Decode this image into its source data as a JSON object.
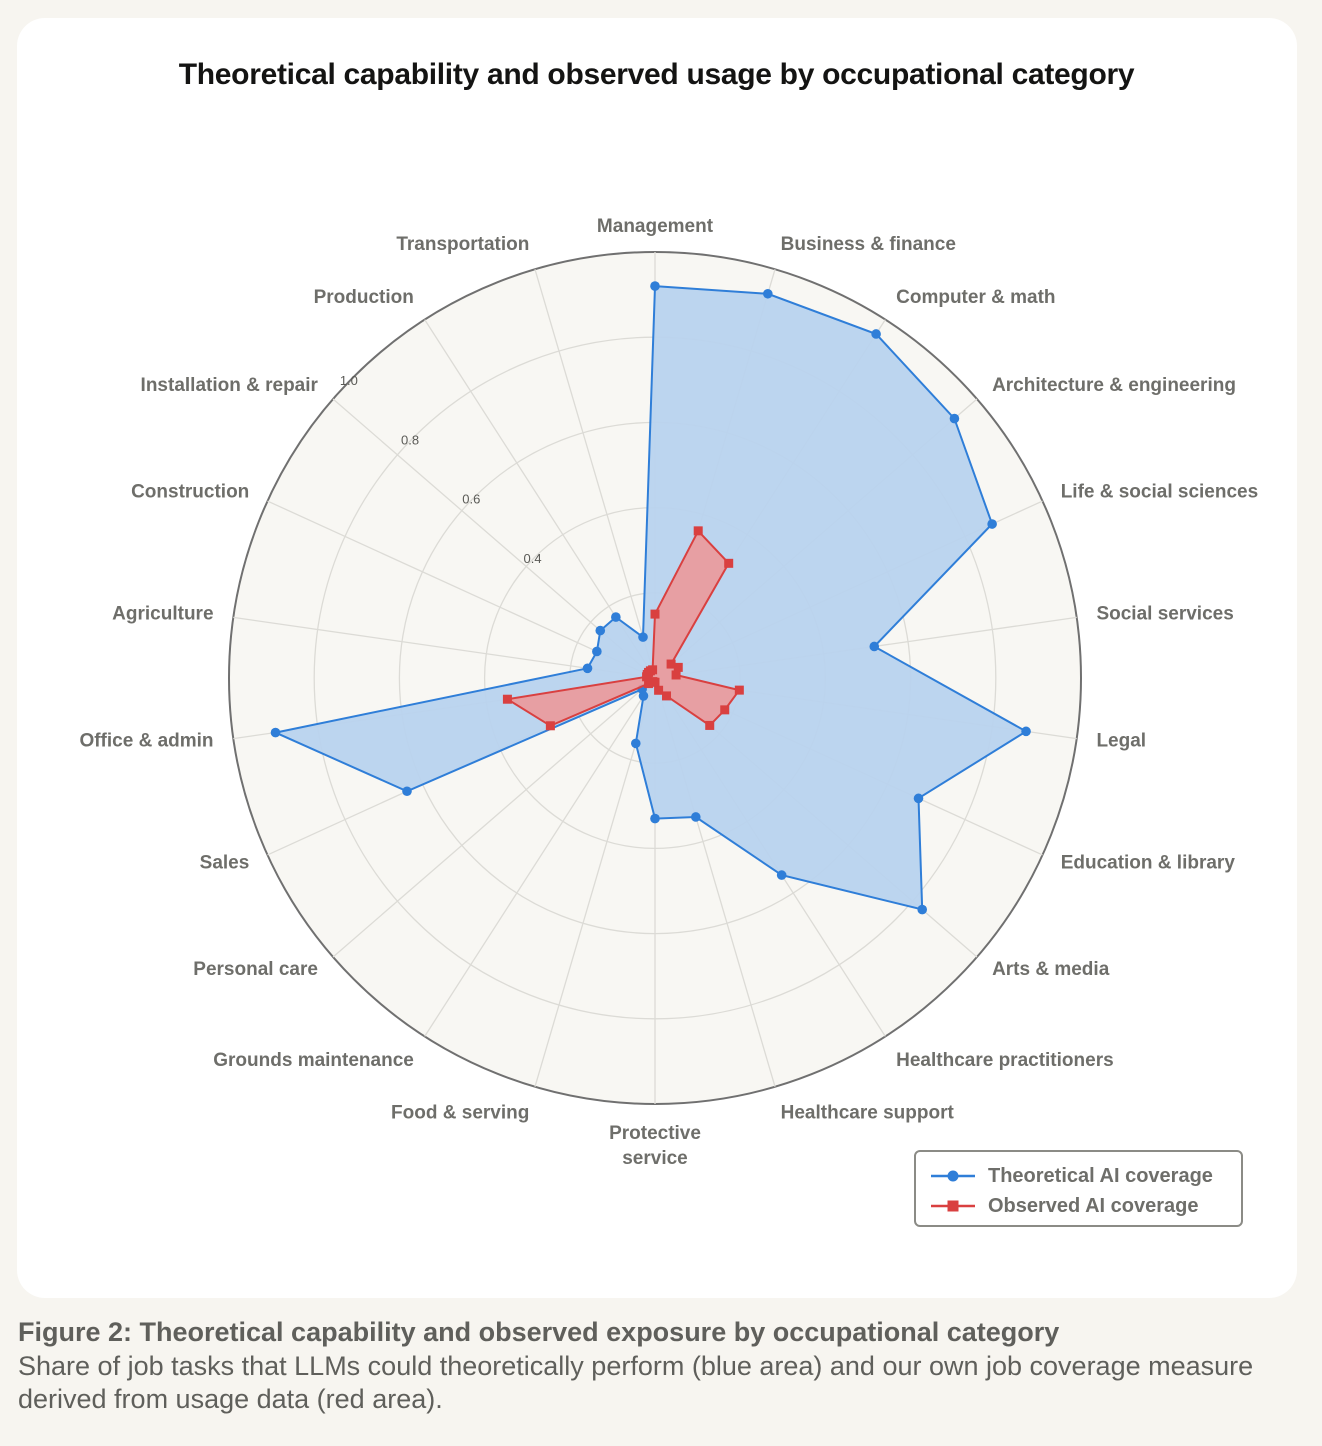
{
  "chart_data": {
    "type": "radar",
    "title": "Theoretical capability and observed usage by occupational category",
    "categories": [
      "Management",
      "Business & finance",
      "Computer & math",
      "Architecture & engineering",
      "Life & social sciences",
      "Social services",
      "Legal",
      "Education & library",
      "Arts & media",
      "Healthcare practitioners",
      "Healthcare support",
      "Protective service",
      "Food & serving",
      "Grounds maintenance",
      "Personal care",
      "Sales",
      "Office & admin",
      "Agriculture",
      "Construction",
      "Installation & repair",
      "Production",
      "Transportation"
    ],
    "radial_ticks": [
      "0.4",
      "0.6",
      "0.8",
      "1.0"
    ],
    "rlim": [
      0,
      1
    ],
    "series": [
      {
        "name": "Theoretical AI coverage",
        "color": "#2f7ed8",
        "fill": "#b8d3ee",
        "values": [
          0.92,
          0.94,
          0.96,
          0.93,
          0.87,
          0.52,
          0.88,
          0.68,
          0.83,
          0.55,
          0.34,
          0.33,
          0.16,
          0.05,
          0.04,
          0.64,
          0.9,
          0.16,
          0.15,
          0.17,
          0.17,
          0.1
        ]
      },
      {
        "name": "Observed AI coverage",
        "color": "#d94040",
        "fill": "#ee9595",
        "values": [
          0.15,
          0.36,
          0.32,
          0.05,
          0.06,
          0.05,
          0.2,
          0.18,
          0.17,
          0.05,
          0.03,
          0.01,
          0.01,
          0.01,
          0.02,
          0.27,
          0.35,
          0.02,
          0.02,
          0.02,
          0.02,
          0.02
        ]
      }
    ],
    "legend": [
      "Theoretical AI coverage",
      "Observed AI coverage"
    ],
    "legend_position": "bottom-right"
  },
  "caption": {
    "title": "Figure 2: Theoretical capability and observed exposure by occupational category",
    "body": "Share of job tasks that LLMs could theoretically perform (blue area) and our own job coverage measure derived from usage data (red area)."
  }
}
